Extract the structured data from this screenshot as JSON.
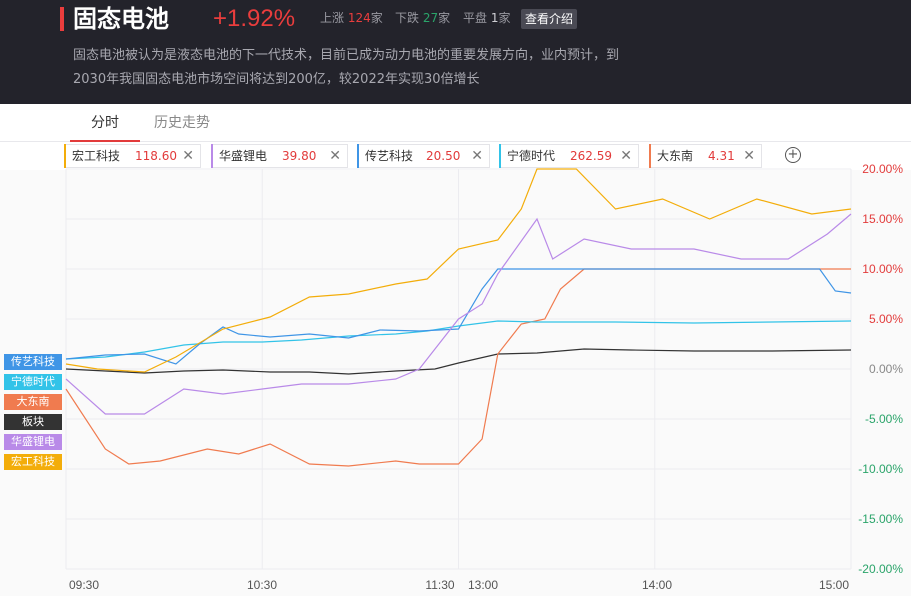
{
  "header": {
    "title": "固态电池",
    "change_pct": "+1.92%",
    "up_label": "上涨",
    "up_count": "124",
    "down_label": "下跌",
    "down_count": "27",
    "flat_label": "平盘",
    "flat_count": "1",
    "unit": "家",
    "intro_button": "查看介绍",
    "desc_line1": "固态电池被认为是液态电池的下一代技术，目前已成为动力电池的重要发展方向，业内预计，到",
    "desc_line2": "2030年我国固态电池市场空间将达到200亿，较2022年实现30倍增长"
  },
  "tabs": [
    {
      "label": "分时",
      "active": true
    },
    {
      "label": "历史走势",
      "active": false
    }
  ],
  "stocks": [
    {
      "name": "宏工科技",
      "price": "118.60",
      "color": "#f3ad0a"
    },
    {
      "name": "华盛锂电",
      "price": "39.80",
      "color": "#b98ae8"
    },
    {
      "name": "传艺科技",
      "price": "20.50",
      "color": "#3f95e6"
    },
    {
      "name": "宁德时代",
      "price": "262.59",
      "color": "#32c3e8"
    },
    {
      "name": "大东南",
      "price": "4.31",
      "color": "#f07b4f"
    }
  ],
  "legend_labels": [
    {
      "name": "传艺科技",
      "color": "#3f95e6"
    },
    {
      "name": "宁德时代",
      "color": "#32c3e8"
    },
    {
      "name": "大东南",
      "color": "#f07b4f"
    },
    {
      "name": "板块",
      "color": "#333333"
    },
    {
      "name": "华盛锂电",
      "color": "#b98ae8"
    },
    {
      "name": "宏工科技",
      "color": "#f3ad0a"
    }
  ],
  "chart_data": {
    "type": "line",
    "x_ticks": [
      "09:30",
      "10:30",
      "11:30",
      "13:00",
      "14:00",
      "15:00"
    ],
    "ylim": [
      -20,
      20
    ],
    "y_ticks": [
      "20.00%",
      "15.00%",
      "10.00%",
      "5.00%",
      "0.00%",
      "-5.00%",
      "-10.00%",
      "-15.00%",
      "-20.00%"
    ],
    "grid": true,
    "series": [
      {
        "name": "宏工科技",
        "color": "#f3ad0a",
        "points": [
          [
            0,
            0.5
          ],
          [
            0.04,
            0
          ],
          [
            0.1,
            -0.3
          ],
          [
            0.14,
            1.2
          ],
          [
            0.2,
            4
          ],
          [
            0.26,
            5.2
          ],
          [
            0.31,
            7.2
          ],
          [
            0.36,
            7.5
          ],
          [
            0.42,
            8.5
          ],
          [
            0.46,
            9
          ],
          [
            0.5,
            12
          ],
          [
            0.55,
            12.9
          ],
          [
            0.58,
            16
          ],
          [
            0.6,
            20
          ],
          [
            0.65,
            20
          ],
          [
            0.7,
            16
          ],
          [
            0.76,
            17
          ],
          [
            0.82,
            15
          ],
          [
            0.88,
            17
          ],
          [
            0.95,
            15.5
          ],
          [
            1,
            16
          ]
        ]
      },
      {
        "name": "华盛锂电",
        "color": "#b98ae8",
        "points": [
          [
            0,
            -1
          ],
          [
            0.05,
            -4.5
          ],
          [
            0.1,
            -4.5
          ],
          [
            0.15,
            -2
          ],
          [
            0.2,
            -2.5
          ],
          [
            0.25,
            -2
          ],
          [
            0.3,
            -1.5
          ],
          [
            0.36,
            -1.5
          ],
          [
            0.42,
            -1
          ],
          [
            0.45,
            0
          ],
          [
            0.5,
            5
          ],
          [
            0.53,
            6.5
          ],
          [
            0.55,
            9.5
          ],
          [
            0.6,
            15
          ],
          [
            0.62,
            11
          ],
          [
            0.66,
            13
          ],
          [
            0.72,
            12
          ],
          [
            0.8,
            12
          ],
          [
            0.86,
            11
          ],
          [
            0.92,
            11
          ],
          [
            0.97,
            13.5
          ],
          [
            1,
            15.5
          ]
        ]
      },
      {
        "name": "传艺科技",
        "color": "#3f95e6",
        "points": [
          [
            0,
            1
          ],
          [
            0.05,
            1.4
          ],
          [
            0.1,
            1.5
          ],
          [
            0.14,
            0.5
          ],
          [
            0.17,
            2.5
          ],
          [
            0.2,
            4.2
          ],
          [
            0.22,
            3.5
          ],
          [
            0.26,
            3.2
          ],
          [
            0.31,
            3.5
          ],
          [
            0.36,
            3.1
          ],
          [
            0.4,
            3.9
          ],
          [
            0.45,
            3.8
          ],
          [
            0.5,
            4
          ],
          [
            0.53,
            8
          ],
          [
            0.55,
            10
          ],
          [
            0.6,
            10
          ],
          [
            0.96,
            10
          ],
          [
            0.98,
            7.8
          ],
          [
            1,
            7.6
          ]
        ]
      },
      {
        "name": "宁德时代",
        "color": "#32c3e8",
        "points": [
          [
            0,
            1
          ],
          [
            0.05,
            1.2
          ],
          [
            0.1,
            1.7
          ],
          [
            0.15,
            2.4
          ],
          [
            0.2,
            2.7
          ],
          [
            0.25,
            2.7
          ],
          [
            0.3,
            2.9
          ],
          [
            0.36,
            3.3
          ],
          [
            0.42,
            3.5
          ],
          [
            0.46,
            3.8
          ],
          [
            0.5,
            4.3
          ],
          [
            0.55,
            4.8
          ],
          [
            0.6,
            4.7
          ],
          [
            0.7,
            4.7
          ],
          [
            0.8,
            4.6
          ],
          [
            0.9,
            4.7
          ],
          [
            1,
            4.8
          ]
        ]
      },
      {
        "name": "大东南",
        "color": "#f07b4f",
        "points": [
          [
            0,
            -2
          ],
          [
            0.05,
            -8
          ],
          [
            0.08,
            -9.5
          ],
          [
            0.12,
            -9.2
          ],
          [
            0.18,
            -8
          ],
          [
            0.22,
            -8.5
          ],
          [
            0.26,
            -7.5
          ],
          [
            0.31,
            -9.5
          ],
          [
            0.36,
            -9.7
          ],
          [
            0.42,
            -9.2
          ],
          [
            0.45,
            -9.5
          ],
          [
            0.5,
            -9.5
          ],
          [
            0.53,
            -7
          ],
          [
            0.55,
            1.5
          ],
          [
            0.58,
            4.5
          ],
          [
            0.61,
            5
          ],
          [
            0.63,
            8
          ],
          [
            0.66,
            10
          ],
          [
            1,
            10
          ]
        ]
      },
      {
        "name": "板块",
        "color": "#333333",
        "points": [
          [
            0,
            0
          ],
          [
            0.05,
            -0.2
          ],
          [
            0.1,
            -0.4
          ],
          [
            0.15,
            -0.2
          ],
          [
            0.2,
            -0.1
          ],
          [
            0.26,
            -0.3
          ],
          [
            0.31,
            -0.3
          ],
          [
            0.36,
            -0.5
          ],
          [
            0.42,
            -0.2
          ],
          [
            0.47,
            0
          ],
          [
            0.5,
            0.6
          ],
          [
            0.55,
            1.5
          ],
          [
            0.6,
            1.6
          ],
          [
            0.66,
            2
          ],
          [
            0.72,
            1.9
          ],
          [
            0.8,
            1.8
          ],
          [
            0.9,
            1.8
          ],
          [
            1,
            1.9
          ]
        ]
      }
    ]
  }
}
